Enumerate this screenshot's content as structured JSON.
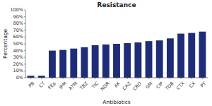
{
  "chart_data": {
    "type": "bar",
    "title": "Resistance",
    "x_label": "Antibiotics",
    "y_label": "Percentage",
    "categories": [
      "PB",
      "CT",
      "FEp",
      "IPM",
      "ATM",
      "TBZ",
      "TIC",
      "NOR",
      "AK",
      "CAZ",
      "CRO",
      "GM",
      "CIP",
      "TOB",
      "CTX",
      "CX",
      "PY"
    ],
    "values": [
      3,
      3,
      40,
      41,
      43,
      45,
      48,
      49,
      50,
      51,
      52,
      54,
      55,
      58,
      65,
      66,
      68
    ],
    "color": "#1e2d78",
    "ylim": [
      0,
      100
    ],
    "yticks": [
      {
        "value": 0,
        "label": "0%"
      },
      {
        "value": 10,
        "label": "10%"
      },
      {
        "value": 20,
        "label": "20%"
      },
      {
        "value": 30,
        "label": "30%"
      },
      {
        "value": 40,
        "label": "40%"
      },
      {
        "value": 50,
        "label": "50%"
      },
      {
        "value": 60,
        "label": "60%"
      },
      {
        "value": 70,
        "label": "70%"
      },
      {
        "value": 80,
        "label": "80%"
      },
      {
        "value": 90,
        "label": "90%"
      },
      {
        "value": 100,
        "label": "100%"
      }
    ],
    "grid": false
  }
}
